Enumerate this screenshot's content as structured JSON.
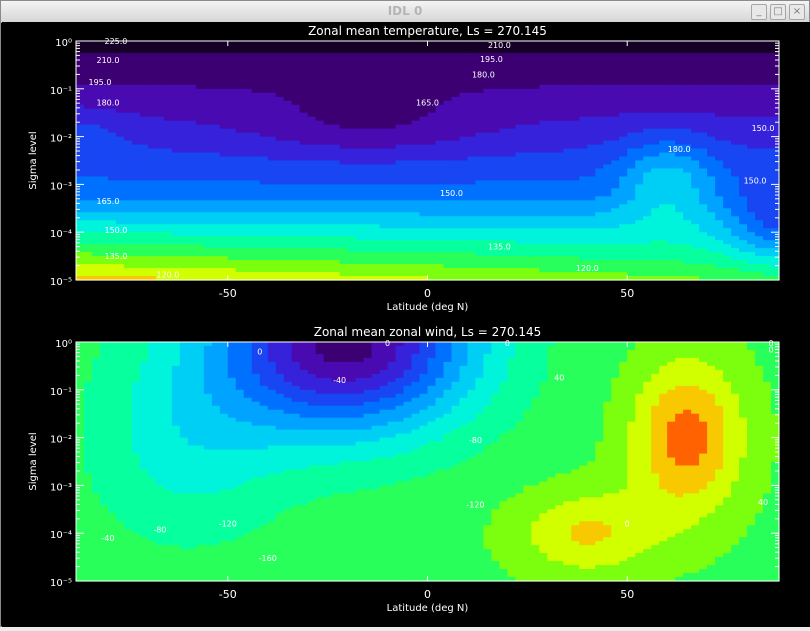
{
  "window": {
    "title": "IDL 0",
    "buttons": [
      "_",
      "□",
      "×"
    ]
  },
  "chart_data": [
    {
      "type": "contour",
      "title": "Zonal mean temperature, Ls =       270.145",
      "xlabel": "Latitude (deg N)",
      "ylabel": "Sigma level",
      "xlim": [
        -88,
        88
      ],
      "x_ticks": [
        "-50",
        "0",
        "50"
      ],
      "x_tick_values": [
        -50,
        0,
        50
      ],
      "y_scale": "log",
      "ylim": [
        1e-05,
        1
      ],
      "y_ticks": [
        "10⁻⁵",
        "10⁻⁴",
        "10⁻³",
        "10⁻²",
        "10⁻¹",
        "10⁰"
      ],
      "contour_labels": [
        {
          "text": "120.0",
          "lat": -65,
          "sigma": 1.3e-05
        },
        {
          "text": "120.0",
          "lat": 40,
          "sigma": 1.8e-05
        },
        {
          "text": "135.0",
          "lat": -78,
          "sigma": 3.2e-05
        },
        {
          "text": "135.0",
          "lat": 18,
          "sigma": 5e-05
        },
        {
          "text": "150.0",
          "lat": -78,
          "sigma": 0.00011
        },
        {
          "text": "150.0",
          "lat": 6,
          "sigma": 0.00066
        },
        {
          "text": "165.0",
          "lat": -80,
          "sigma": 0.00045
        },
        {
          "text": "165.0",
          "lat": 0,
          "sigma": 0.052
        },
        {
          "text": "180.0",
          "lat": -80,
          "sigma": 0.052
        },
        {
          "text": "180.0",
          "lat": 14,
          "sigma": 0.2
        },
        {
          "text": "180.0",
          "lat": 63,
          "sigma": 0.0055
        },
        {
          "text": "195.0",
          "lat": -82,
          "sigma": 0.14
        },
        {
          "text": "195.0",
          "lat": 16,
          "sigma": 0.42
        },
        {
          "text": "210.0",
          "lat": -80,
          "sigma": 0.4
        },
        {
          "text": "210.0",
          "lat": 18,
          "sigma": 0.82
        },
        {
          "text": "225.0",
          "lat": -78,
          "sigma": 1.0
        },
        {
          "text": "150.0",
          "lat": 82,
          "sigma": 0.0012
        },
        {
          "text": "150.0",
          "lat": 84,
          "sigma": 0.015
        }
      ]
    },
    {
      "type": "contour",
      "title": "Zonal mean zonal wind, Ls =       270.145",
      "xlabel": "Latitude (deg N)",
      "ylabel": "Sigma level",
      "xlim": [
        -88,
        88
      ],
      "x_ticks": [
        "-50",
        "0",
        "50"
      ],
      "x_tick_values": [
        -50,
        0,
        50
      ],
      "y_scale": "log",
      "ylim": [
        1e-05,
        1
      ],
      "y_ticks": [
        "10⁻⁵",
        "10⁻⁴",
        "10⁻³",
        "10⁻²",
        "10⁻¹",
        "10⁰"
      ],
      "contour_labels": [
        {
          "text": "-160",
          "lat": -40,
          "sigma": 3e-05
        },
        {
          "text": "-40",
          "lat": -80,
          "sigma": 8e-05
        },
        {
          "text": "-80",
          "lat": -67,
          "sigma": 0.00012
        },
        {
          "text": "-120",
          "lat": -50,
          "sigma": 0.00016
        },
        {
          "text": "-120",
          "lat": 12,
          "sigma": 0.0004
        },
        {
          "text": "-80",
          "lat": 12,
          "sigma": 0.009
        },
        {
          "text": "-40",
          "lat": -22,
          "sigma": 0.16
        },
        {
          "text": "0",
          "lat": -42,
          "sigma": 0.63
        },
        {
          "text": "0",
          "lat": -10,
          "sigma": 0.95
        },
        {
          "text": "0",
          "lat": 20,
          "sigma": 0.95
        },
        {
          "text": "0",
          "lat": 50,
          "sigma": 0.00016
        },
        {
          "text": "40",
          "lat": 33,
          "sigma": 0.18
        },
        {
          "text": "40",
          "lat": 84,
          "sigma": 0.00045
        },
        {
          "text": "0",
          "lat": 86,
          "sigma": 0.7
        },
        {
          "text": "0",
          "lat": 86,
          "sigma": 0.95
        }
      ]
    }
  ]
}
